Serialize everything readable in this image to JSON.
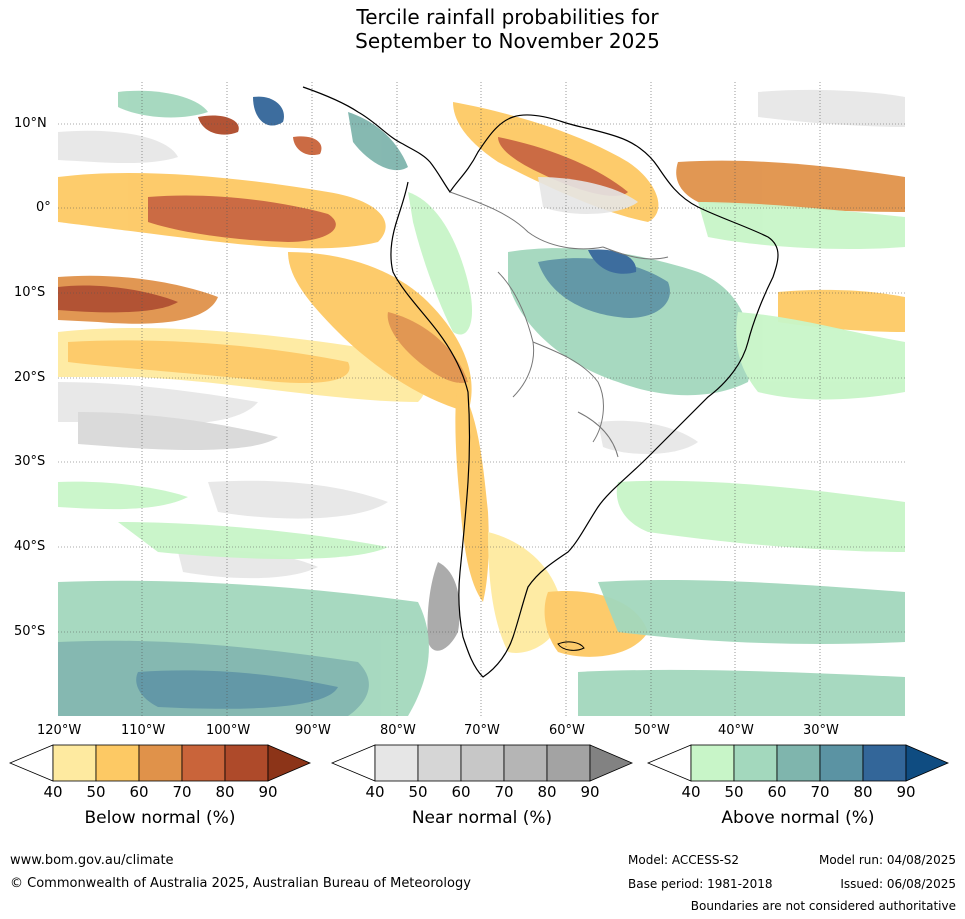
{
  "title": {
    "line1": "Tercile rainfall probabilities for",
    "line2": "September to November 2025"
  },
  "map": {
    "lat_labels": [
      "10°N",
      "0°",
      "10°S",
      "20°S",
      "30°S",
      "40°S",
      "50°S"
    ],
    "lon_labels": [
      "120°W",
      "110°W",
      "100°W",
      "90°W",
      "80°W",
      "70°W",
      "60°W",
      "50°W",
      "40°W",
      "30°W"
    ],
    "region": "South America"
  },
  "colorbars": [
    {
      "label": "Below normal (%)",
      "ticks": [
        "40",
        "50",
        "60",
        "70",
        "80",
        "90"
      ],
      "colors": [
        "#ffffff",
        "#feeaa0",
        "#fdc964",
        "#e0924a",
        "#c9643a",
        "#ae4a2a",
        "#8c3418"
      ]
    },
    {
      "label": "Near normal (%)",
      "ticks": [
        "40",
        "50",
        "60",
        "70",
        "80",
        "90"
      ],
      "colors": [
        "#ffffff",
        "#e6e6e6",
        "#d6d6d6",
        "#c7c7c7",
        "#b5b5b5",
        "#a3a3a3",
        "#828282"
      ]
    },
    {
      "label": "Above normal (%)",
      "ticks": [
        "40",
        "50",
        "60",
        "70",
        "80",
        "90"
      ],
      "colors": [
        "#ffffff",
        "#c8f5c8",
        "#a3d8bd",
        "#7fb5ad",
        "#5b93a3",
        "#336699",
        "#0f4c81"
      ]
    }
  ],
  "footer": {
    "website": "www.bom.gov.au/climate",
    "copyright": "© Commonwealth of Australia 2025, Australian Bureau of Meteorology",
    "model": "Model: ACCESS-S2",
    "base_period": "Base period: 1981-2018",
    "model_run": "Model run: 04/08/2025",
    "issued": "Issued: 06/08/2025",
    "boundaries_note": "Boundaries are not considered authoritative"
  }
}
